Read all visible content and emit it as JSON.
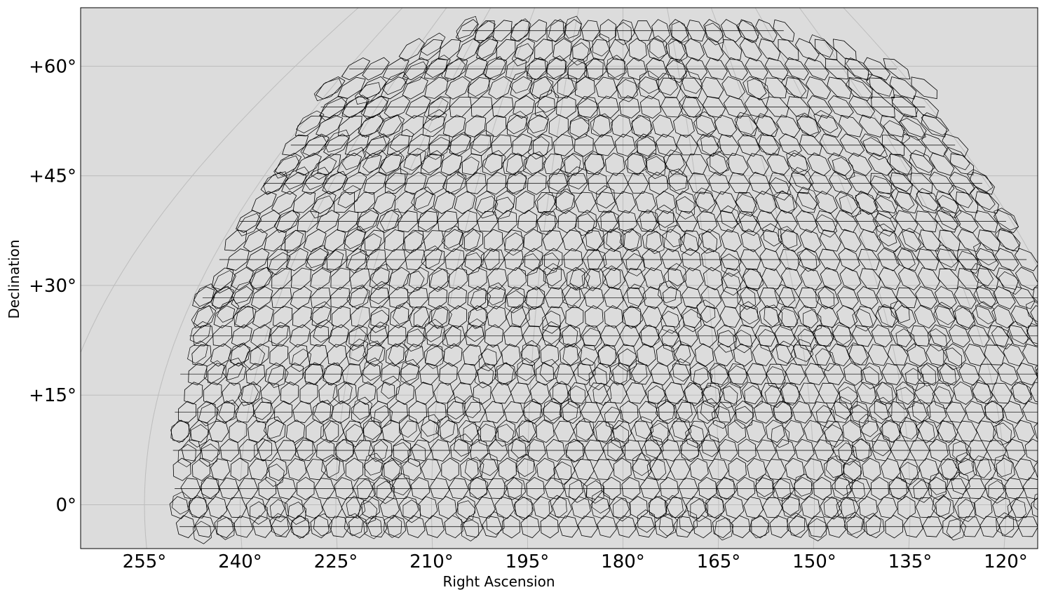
{
  "chart_data": {
    "type": "scatter",
    "projection": "sky map (Mollweide-like)",
    "xlabel": "Right Ascension",
    "ylabel": "Declination",
    "x_ticks": [
      255,
      240,
      225,
      210,
      195,
      180,
      165,
      150,
      135,
      120
    ],
    "x_tick_labels": [
      "255°",
      "240°",
      "225°",
      "210°",
      "195°",
      "180°",
      "165°",
      "150°",
      "135°",
      "120°"
    ],
    "y_ticks": [
      0,
      15,
      30,
      45,
      60
    ],
    "y_tick_labels": [
      "0°",
      "+15°",
      "+30°",
      "+45°",
      "+60°"
    ],
    "xlim": [
      265,
      115
    ],
    "ylim": [
      -6,
      68
    ],
    "grid": true,
    "background_color": "#dcdcdc",
    "outline_color": "#000000",
    "footprint": {
      "description_shape": "tiled hexagonal field footprints",
      "dec_range": [
        -3,
        67
      ],
      "ra_center": 180,
      "ra_half_width_at_equator": 70,
      "tile_spacing_deg": 3.0
    }
  }
}
